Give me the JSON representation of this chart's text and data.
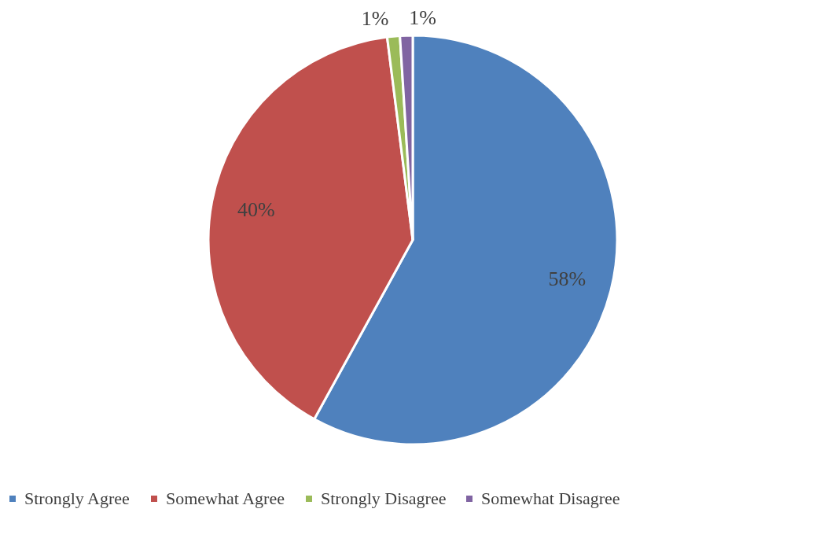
{
  "chart_data": {
    "type": "pie",
    "categories": [
      "Strongly Agree",
      "Somewhat Agree",
      "Strongly Disagree",
      "Somewhat Disagree"
    ],
    "values": [
      58,
      40,
      1,
      1
    ],
    "colors": [
      "#4f81bd",
      "#c0504d",
      "#9bbb59",
      "#8064a2"
    ],
    "value_labels": [
      "58%",
      "40%",
      "1%",
      "1%"
    ],
    "legend": "bottom"
  }
}
